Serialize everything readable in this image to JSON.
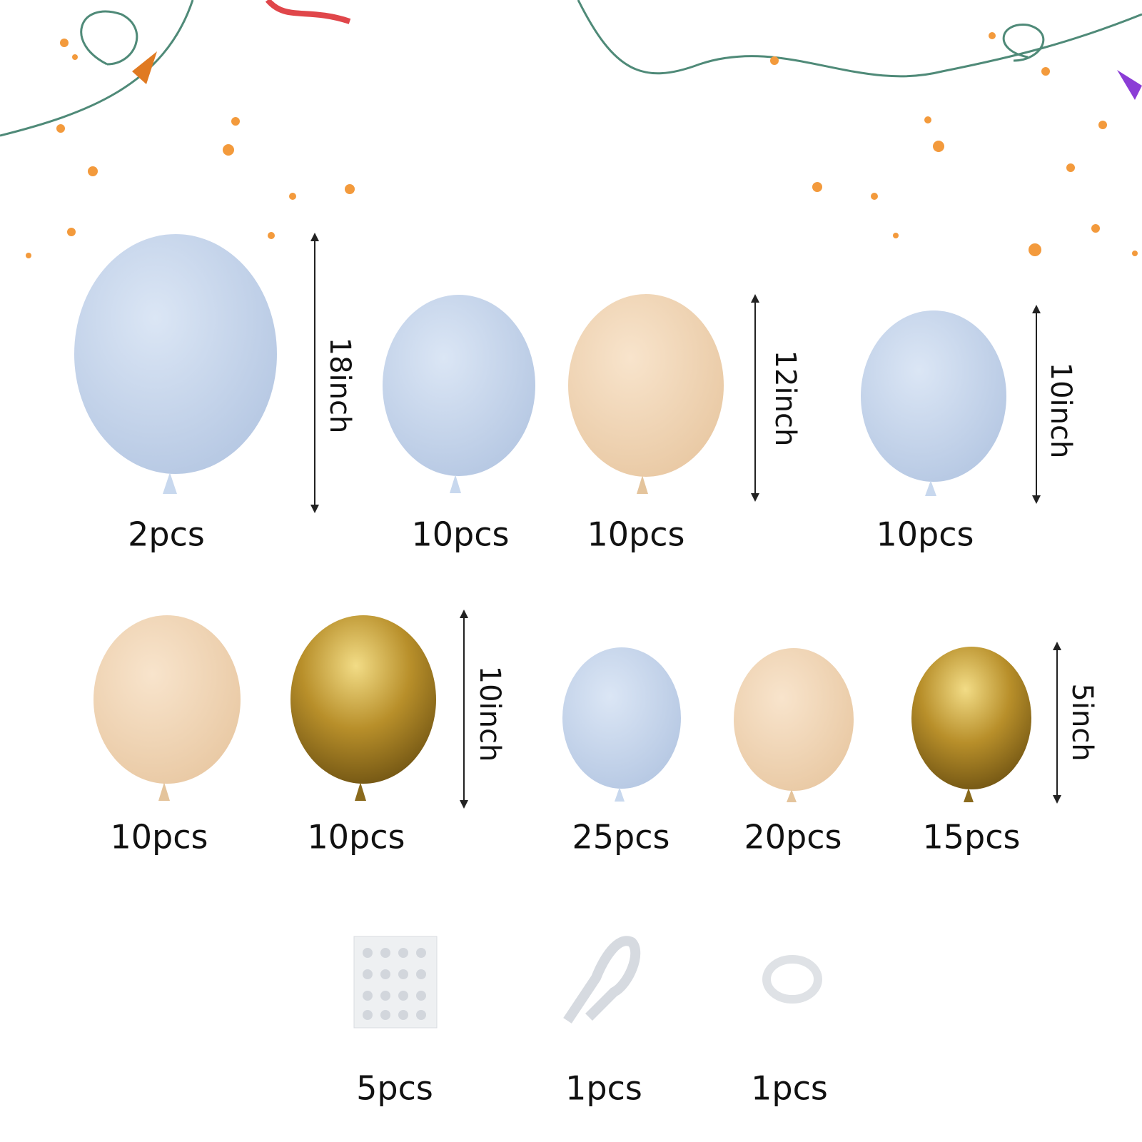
{
  "row1": {
    "counts": [
      "2pcs",
      "10pcs",
      "10pcs",
      "10pcs"
    ],
    "sizes": [
      "18inch",
      "12inch",
      "10inch"
    ]
  },
  "row2": {
    "counts": [
      "10pcs",
      "10pcs",
      "25pcs",
      "20pcs",
      "15pcs"
    ],
    "sizes": [
      "10inch",
      "5inch"
    ]
  },
  "accessories": {
    "counts": [
      "5pcs",
      "1pcs",
      "1pcs"
    ]
  }
}
